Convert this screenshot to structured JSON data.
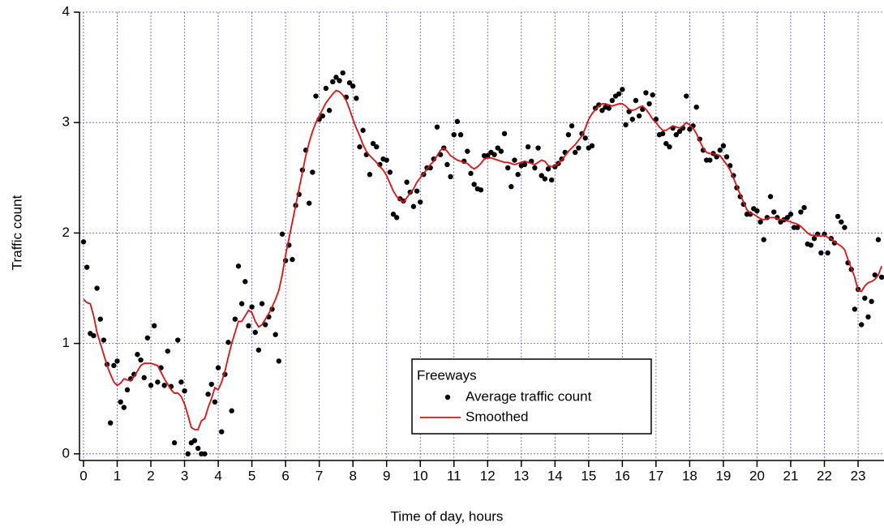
{
  "chart_data": {
    "type": "scatter",
    "x_label": "Time of day, hours",
    "y_label": "Traffic count",
    "legend_title": "Freeways",
    "legend": "bottom-center",
    "grid": true,
    "xlim": [
      -0.12,
      23.77
    ],
    "ylim": [
      -0.06,
      4
    ],
    "xticks": [
      0,
      1,
      2,
      3,
      4,
      5,
      6,
      7,
      8,
      9,
      10,
      11,
      12,
      13,
      14,
      15,
      16,
      17,
      18,
      19,
      20,
      21,
      22,
      23
    ],
    "yticks": [
      0,
      1,
      2,
      3,
      4
    ],
    "x": [
      0,
      0.1,
      0.2,
      0.3,
      0.4,
      0.5,
      0.6,
      0.7,
      0.8,
      0.9,
      1,
      1.1,
      1.2,
      1.3,
      1.4,
      1.5,
      1.6,
      1.7,
      1.8,
      1.9,
      2,
      2.1,
      2.2,
      2.3,
      2.4,
      2.5,
      2.6,
      2.7,
      2.8,
      2.9,
      3,
      3.1,
      3.2,
      3.3,
      3.4,
      3.5,
      3.6,
      3.7,
      3.8,
      3.9,
      4,
      4.1,
      4.2,
      4.3,
      4.4,
      4.5,
      4.6,
      4.7,
      4.8,
      4.9,
      5,
      5.1,
      5.2,
      5.3,
      5.4,
      5.5,
      5.6,
      5.7,
      5.8,
      5.9,
      6,
      6.1,
      6.2,
      6.3,
      6.4,
      6.5,
      6.6,
      6.7,
      6.8,
      6.9,
      7,
      7.1,
      7.2,
      7.3,
      7.4,
      7.5,
      7.6,
      7.7,
      7.8,
      7.9,
      8,
      8.1,
      8.2,
      8.3,
      8.4,
      8.5,
      8.6,
      8.7,
      8.8,
      8.9,
      9,
      9.1,
      9.2,
      9.3,
      9.4,
      9.5,
      9.6,
      9.7,
      9.8,
      9.9,
      10,
      10.1,
      10.2,
      10.3,
      10.4,
      10.5,
      10.6,
      10.7,
      10.8,
      10.9,
      11,
      11.1,
      11.2,
      11.3,
      11.4,
      11.5,
      11.6,
      11.7,
      11.8,
      11.9,
      12,
      12.1,
      12.2,
      12.3,
      12.4,
      12.5,
      12.6,
      12.7,
      12.8,
      12.9,
      13,
      13.1,
      13.2,
      13.3,
      13.4,
      13.5,
      13.6,
      13.7,
      13.8,
      13.9,
      14,
      14.1,
      14.2,
      14.3,
      14.4,
      14.5,
      14.6,
      14.7,
      14.8,
      14.9,
      15,
      15.1,
      15.2,
      15.3,
      15.4,
      15.5,
      15.6,
      15.7,
      15.8,
      15.9,
      16,
      16.1,
      16.2,
      16.3,
      16.4,
      16.5,
      16.6,
      16.7,
      16.8,
      16.9,
      17,
      17.1,
      17.2,
      17.3,
      17.4,
      17.5,
      17.6,
      17.7,
      17.8,
      17.9,
      18,
      18.1,
      18.2,
      18.3,
      18.4,
      18.5,
      18.6,
      18.7,
      18.8,
      18.9,
      19,
      19.1,
      19.2,
      19.3,
      19.4,
      19.5,
      19.6,
      19.7,
      19.8,
      19.9,
      20,
      20.1,
      20.2,
      20.3,
      20.4,
      20.5,
      20.6,
      20.7,
      20.8,
      20.9,
      21,
      21.1,
      21.2,
      21.3,
      21.4,
      21.5,
      21.6,
      21.7,
      21.8,
      21.9,
      22,
      22.1,
      22.2,
      22.3,
      22.4,
      22.5,
      22.6,
      22.7,
      22.8,
      22.9,
      23,
      23.1,
      23.2,
      23.3,
      23.4,
      23.5,
      23.6,
      23.7
    ],
    "series": [
      {
        "name": "Average traffic count",
        "color": "#000000",
        "style": "dots",
        "values": [
          1.92,
          1.69,
          1.09,
          1.07,
          1.5,
          1.22,
          1.03,
          0.81,
          0.28,
          0.8,
          0.84,
          0.47,
          0.42,
          0.58,
          0.68,
          0.72,
          0.9,
          0.85,
          0.69,
          1.05,
          0.62,
          1.16,
          0.65,
          0.78,
          0.62,
          0.93,
          0.61,
          0.1,
          1.03,
          0.65,
          0.57,
          0.0,
          0.1,
          0.12,
          0.05,
          0.0,
          0.0,
          0.54,
          0.63,
          0.47,
          0.78,
          0.2,
          0.72,
          1.01,
          0.39,
          1.22,
          1.7,
          1.36,
          1.56,
          1.16,
          1.33,
          1.1,
          0.94,
          1.36,
          1.17,
          1.24,
          1.31,
          1.08,
          0.84,
          1.99,
          1.75,
          1.89,
          1.76,
          2.25,
          2.35,
          2.57,
          2.75,
          2.27,
          2.55,
          3.24,
          3.03,
          3.06,
          3.31,
          3.11,
          3.37,
          3.41,
          3.38,
          3.45,
          3.23,
          3.36,
          3.33,
          3.22,
          2.78,
          2.93,
          2.71,
          2.53,
          2.81,
          2.78,
          2.62,
          2.67,
          2.66,
          2.55,
          2.17,
          2.14,
          2.31,
          2.29,
          2.46,
          2.37,
          2.24,
          2.38,
          2.28,
          2.53,
          2.59,
          2.59,
          2.67,
          2.96,
          2.71,
          2.77,
          2.62,
          2.51,
          2.89,
          3.01,
          2.89,
          2.65,
          2.74,
          2.54,
          2.44,
          2.4,
          2.39,
          2.7,
          2.7,
          2.73,
          2.71,
          2.77,
          2.74,
          2.9,
          2.59,
          2.42,
          2.66,
          2.53,
          2.61,
          2.62,
          2.78,
          2.65,
          2.59,
          2.77,
          2.52,
          2.49,
          2.58,
          2.48,
          2.6,
          2.63,
          2.67,
          2.73,
          2.89,
          2.97,
          2.73,
          2.77,
          2.9,
          2.86,
          2.77,
          2.79,
          3.13,
          3.16,
          3.11,
          3.14,
          3.13,
          3.2,
          3.24,
          3.26,
          3.3,
          2.98,
          3.1,
          3.03,
          3.2,
          3.06,
          3.12,
          3.27,
          3.17,
          3.25,
          3.03,
          2.89,
          2.9,
          2.81,
          2.78,
          2.95,
          2.89,
          2.92,
          2.95,
          3.24,
          2.94,
          2.97,
          3.14,
          2.85,
          2.75,
          2.66,
          2.66,
          2.72,
          2.69,
          2.75,
          2.79,
          2.69,
          2.61,
          2.52,
          2.41,
          2.33,
          2.26,
          2.17,
          2.17,
          2.22,
          2.2,
          2.1,
          1.94,
          2.14,
          2.33,
          2.19,
          2.14,
          2.1,
          2.12,
          2.14,
          2.17,
          2.05,
          2.05,
          2.19,
          2.23,
          1.9,
          1.89,
          1.95,
          1.99,
          1.82,
          1.99,
          1.82,
          1.95,
          1.91,
          2.15,
          2.1,
          2.05,
          1.73,
          1.67,
          1.31,
          1.49,
          1.17,
          1.41,
          1.24,
          1.38,
          1.62,
          1.94,
          1.6
        ]
      },
      {
        "name": "Smoothed",
        "color": "#e01010",
        "style": "line",
        "values": [
          1.4,
          1.37,
          1.36,
          1.25,
          1.1,
          1.0,
          0.9,
          0.8,
          0.72,
          0.65,
          0.62,
          0.64,
          0.68,
          0.67,
          0.66,
          0.7,
          0.75,
          0.8,
          0.82,
          0.82,
          0.82,
          0.81,
          0.8,
          0.74,
          0.68,
          0.63,
          0.58,
          0.55,
          0.55,
          0.52,
          0.45,
          0.35,
          0.24,
          0.22,
          0.22,
          0.3,
          0.32,
          0.42,
          0.5,
          0.6,
          0.58,
          0.65,
          0.75,
          0.88,
          1.0,
          1.1,
          1.2,
          1.2,
          1.25,
          1.3,
          1.28,
          1.2,
          1.15,
          1.17,
          1.22,
          1.27,
          1.33,
          1.4,
          1.48,
          1.62,
          1.8,
          1.95,
          2.1,
          2.25,
          2.4,
          2.55,
          2.7,
          2.82,
          2.92,
          3.0,
          3.06,
          3.12,
          3.18,
          3.22,
          3.26,
          3.29,
          3.28,
          3.25,
          3.2,
          3.12,
          3.03,
          2.95,
          2.88,
          2.8,
          2.74,
          2.7,
          2.67,
          2.64,
          2.6,
          2.57,
          2.52,
          2.45,
          2.38,
          2.33,
          2.3,
          2.28,
          2.32,
          2.36,
          2.4,
          2.46,
          2.5,
          2.54,
          2.58,
          2.62,
          2.65,
          2.7,
          2.75,
          2.77,
          2.74,
          2.7,
          2.68,
          2.66,
          2.65,
          2.64,
          2.63,
          2.6,
          2.58,
          2.6,
          2.63,
          2.67,
          2.68,
          2.68,
          2.67,
          2.66,
          2.65,
          2.64,
          2.64,
          2.63,
          2.62,
          2.63,
          2.64,
          2.65,
          2.64,
          2.63,
          2.62,
          2.64,
          2.66,
          2.65,
          2.61,
          2.6,
          2.61,
          2.63,
          2.66,
          2.7,
          2.74,
          2.77,
          2.8,
          2.84,
          2.88,
          2.95,
          3.03,
          3.08,
          3.12,
          3.15,
          3.17,
          3.17,
          3.16,
          3.15,
          3.16,
          3.17,
          3.17,
          3.15,
          3.12,
          3.11,
          3.12,
          3.14,
          3.15,
          3.12,
          3.08,
          3.03,
          3.0,
          2.96,
          2.93,
          2.93,
          2.95,
          2.97,
          2.96,
          2.95,
          2.97,
          3.0,
          2.98,
          2.95,
          2.9,
          2.83,
          2.77,
          2.73,
          2.72,
          2.72,
          2.71,
          2.7,
          2.66,
          2.62,
          2.57,
          2.5,
          2.42,
          2.35,
          2.28,
          2.21,
          2.18,
          2.17,
          2.15,
          2.13,
          2.12,
          2.13,
          2.14,
          2.14,
          2.13,
          2.12,
          2.12,
          2.11,
          2.1,
          2.09,
          2.08,
          2.06,
          2.03,
          2.0,
          1.98,
          1.98,
          1.98,
          1.97,
          1.98,
          1.96,
          1.95,
          1.92,
          1.9,
          1.88,
          1.85,
          1.76,
          1.68,
          1.6,
          1.48,
          1.47,
          1.52,
          1.55,
          1.56,
          1.58,
          1.62,
          1.7
        ]
      }
    ]
  }
}
